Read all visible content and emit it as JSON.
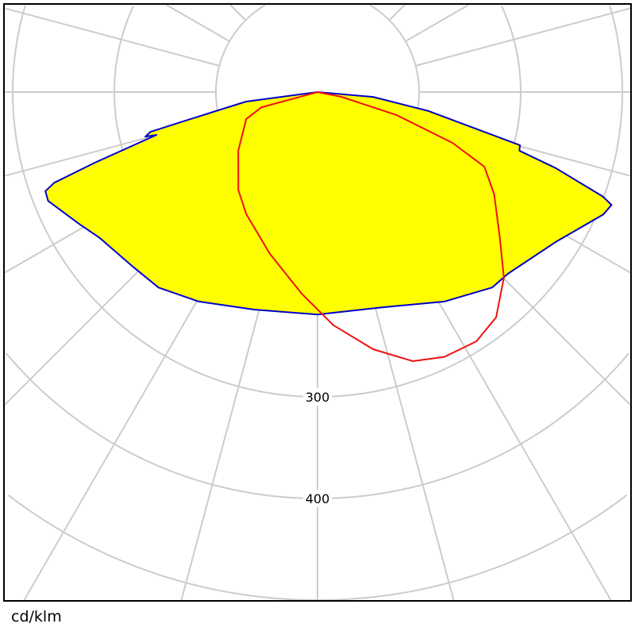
{
  "chart_data": {
    "type": "polar",
    "unit_label": "cd/klm",
    "radial_ticks": [
      100,
      200,
      300,
      400,
      500
    ],
    "radial_tick_labels": [
      {
        "value": 300,
        "label": "300"
      },
      {
        "value": 400,
        "label": "400"
      }
    ],
    "angle_step_deg": 15,
    "grid": true,
    "grid_color": "#cccccc",
    "series": [
      {
        "fill": "#ffff00",
        "stroke": "#0000cc",
        "points": [
          [
            0,
            219
          ],
          [
            16.4,
            221
          ],
          [
            31.2,
            241
          ],
          [
            41.8,
            258
          ],
          [
            46.3,
            259
          ],
          [
            57.8,
            277
          ],
          [
            66.8,
            306
          ],
          [
            69,
            310
          ],
          [
            69.9,
            299
          ],
          [
            72.3,
            246
          ],
          [
            73.8,
            207
          ],
          [
            75.3,
            206
          ],
          [
            80.3,
            111
          ],
          [
            85,
            55
          ],
          [
            180,
            0
          ],
          [
            -82.4,
            71
          ],
          [
            -78,
            128
          ],
          [
            -76.6,
            169
          ],
          [
            -75.5,
            175
          ],
          [
            -75.1,
            164
          ],
          [
            -72.4,
            230
          ],
          [
            -71,
            274
          ],
          [
            -70,
            285
          ],
          [
            -68,
            286
          ],
          [
            -61,
            268
          ],
          [
            -56.2,
            258
          ],
          [
            -46.4,
            250
          ],
          [
            -39.1,
            248
          ],
          [
            -29.6,
            237
          ],
          [
            -16.3,
            223
          ]
        ]
      },
      {
        "fill": "none",
        "stroke": "#ee1111",
        "points": [
          [
            180,
            0
          ],
          [
            -74.8,
            57
          ],
          [
            -69.3,
            75
          ],
          [
            -53.5,
            97
          ],
          [
            -38.9,
            124
          ],
          [
            -30.3,
            139
          ],
          [
            -16.4,
            166
          ],
          [
            -4.5,
            199
          ],
          [
            3.9,
            230
          ],
          [
            12.2,
            259
          ],
          [
            19.5,
            281
          ],
          [
            25.6,
            289
          ],
          [
            32.5,
            291
          ],
          [
            38.4,
            283
          ],
          [
            45.1,
            259
          ],
          [
            51.3,
            230
          ],
          [
            59.9,
            201
          ],
          [
            65.9,
            180
          ],
          [
            69.4,
            142
          ],
          [
            73.8,
            81
          ],
          [
            78.7,
            24
          ]
        ]
      }
    ]
  }
}
